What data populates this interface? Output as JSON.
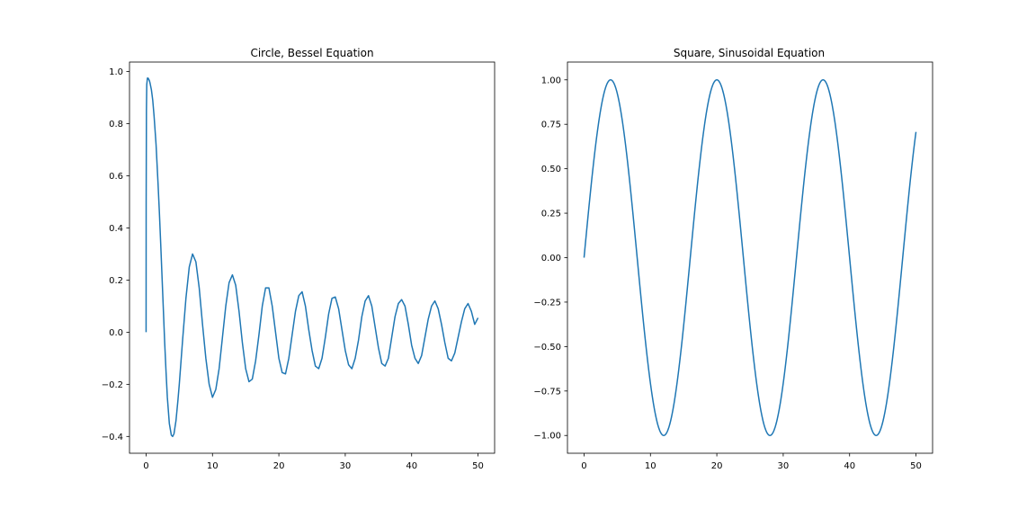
{
  "chart_data": [
    {
      "type": "line",
      "title": "Circle, Bessel Equation",
      "xlabel": "",
      "ylabel": "",
      "xlim": [
        -2.5,
        52.5
      ],
      "ylim": [
        -0.4645,
        1.0365
      ],
      "xticks": [
        0,
        10,
        20,
        30,
        40,
        50
      ],
      "xtick_labels": [
        "0",
        "10",
        "20",
        "30",
        "40",
        "50"
      ],
      "yticks": [
        -0.4,
        -0.2,
        0.0,
        0.2,
        0.4,
        0.6,
        0.8,
        1.0
      ],
      "ytick_labels": [
        "−0.4",
        "−0.2",
        "0.0",
        "0.2",
        "0.4",
        "0.6",
        "0.8",
        "1.0"
      ],
      "grid": false,
      "legend": "none",
      "series": [
        {
          "color": "#1f77b4",
          "x": [
            0,
            0.01,
            0.05,
            0.1,
            0.2,
            0.3,
            0.4,
            0.5,
            0.6,
            0.8,
            1.0,
            1.2,
            1.5,
            1.8,
            2.0,
            2.2,
            2.5,
            2.8,
            3.0,
            3.2,
            3.5,
            3.8,
            4.0,
            4.2,
            4.5,
            4.8,
            5.0,
            5.5,
            6.0,
            6.5,
            7.0,
            7.5,
            8.0,
            8.5,
            9.0,
            9.5,
            10.0,
            10.5,
            11.0,
            11.5,
            12.0,
            12.5,
            13.0,
            13.5,
            14.0,
            14.5,
            15.0,
            15.5,
            16.0,
            16.5,
            17.0,
            17.5,
            18.0,
            18.5,
            19.0,
            19.5,
            20.0,
            20.5,
            21.0,
            21.5,
            22.0,
            22.5,
            23.0,
            23.5,
            24.0,
            24.5,
            25.0,
            25.5,
            26.0,
            26.5,
            27.0,
            27.5,
            28.0,
            28.5,
            29.0,
            29.5,
            30.0,
            30.5,
            31.0,
            31.5,
            32.0,
            32.5,
            33.0,
            33.5,
            34.0,
            34.5,
            35.0,
            35.5,
            36.0,
            36.5,
            37.0,
            37.5,
            38.0,
            38.5,
            39.0,
            39.5,
            40.0,
            40.5,
            41.0,
            41.5,
            42.0,
            42.5,
            43.0,
            43.5,
            44.0,
            44.5,
            45.0,
            45.5,
            46.0,
            46.5,
            47.0,
            47.5,
            48.0,
            48.5,
            49.0,
            49.5,
            50.0
          ],
          "y": [
            0.0,
            0.5,
            0.85,
            0.95,
            0.975,
            0.975,
            0.97,
            0.965,
            0.955,
            0.93,
            0.89,
            0.83,
            0.72,
            0.57,
            0.46,
            0.34,
            0.15,
            -0.04,
            -0.15,
            -0.25,
            -0.35,
            -0.395,
            -0.4,
            -0.39,
            -0.34,
            -0.26,
            -0.2,
            -0.03,
            0.13,
            0.25,
            0.3,
            0.27,
            0.17,
            0.03,
            -0.1,
            -0.2,
            -0.25,
            -0.22,
            -0.14,
            -0.02,
            0.1,
            0.19,
            0.22,
            0.18,
            0.08,
            -0.04,
            -0.14,
            -0.19,
            -0.18,
            -0.11,
            -0.01,
            0.1,
            0.17,
            0.17,
            0.1,
            0.0,
            -0.1,
            -0.155,
            -0.16,
            -0.1,
            -0.01,
            0.08,
            0.14,
            0.155,
            0.1,
            0.01,
            -0.07,
            -0.13,
            -0.14,
            -0.1,
            -0.02,
            0.07,
            0.13,
            0.135,
            0.09,
            0.01,
            -0.07,
            -0.125,
            -0.14,
            -0.1,
            -0.03,
            0.06,
            0.12,
            0.14,
            0.1,
            0.02,
            -0.06,
            -0.12,
            -0.13,
            -0.1,
            -0.02,
            0.06,
            0.11,
            0.125,
            0.1,
            0.03,
            -0.05,
            -0.1,
            -0.12,
            -0.09,
            -0.02,
            0.05,
            0.1,
            0.12,
            0.09,
            0.03,
            -0.04,
            -0.1,
            -0.11,
            -0.08,
            -0.02,
            0.04,
            0.09,
            0.11,
            0.08,
            0.03,
            0.055
          ]
        }
      ]
    },
    {
      "type": "line",
      "title": "Square, Sinusoidal Equation",
      "xlabel": "",
      "ylabel": "",
      "xlim": [
        -2.5,
        52.5
      ],
      "ylim": [
        -1.1,
        1.1
      ],
      "xticks": [
        0,
        10,
        20,
        30,
        40,
        50
      ],
      "xtick_labels": [
        "0",
        "10",
        "20",
        "30",
        "40",
        "50"
      ],
      "yticks": [
        -1.0,
        -0.75,
        -0.5,
        -0.25,
        0.0,
        0.25,
        0.5,
        0.75,
        1.0
      ],
      "ytick_labels": [
        "−1.00",
        "−0.75",
        "−0.50",
        "−0.25",
        "0.00",
        "0.25",
        "0.50",
        "0.75",
        "1.00"
      ],
      "grid": false,
      "legend": "none",
      "series": [
        {
          "color": "#1f77b4",
          "function": "y = sin(pi * x / 8), x from 0 to 50"
        }
      ]
    }
  ]
}
